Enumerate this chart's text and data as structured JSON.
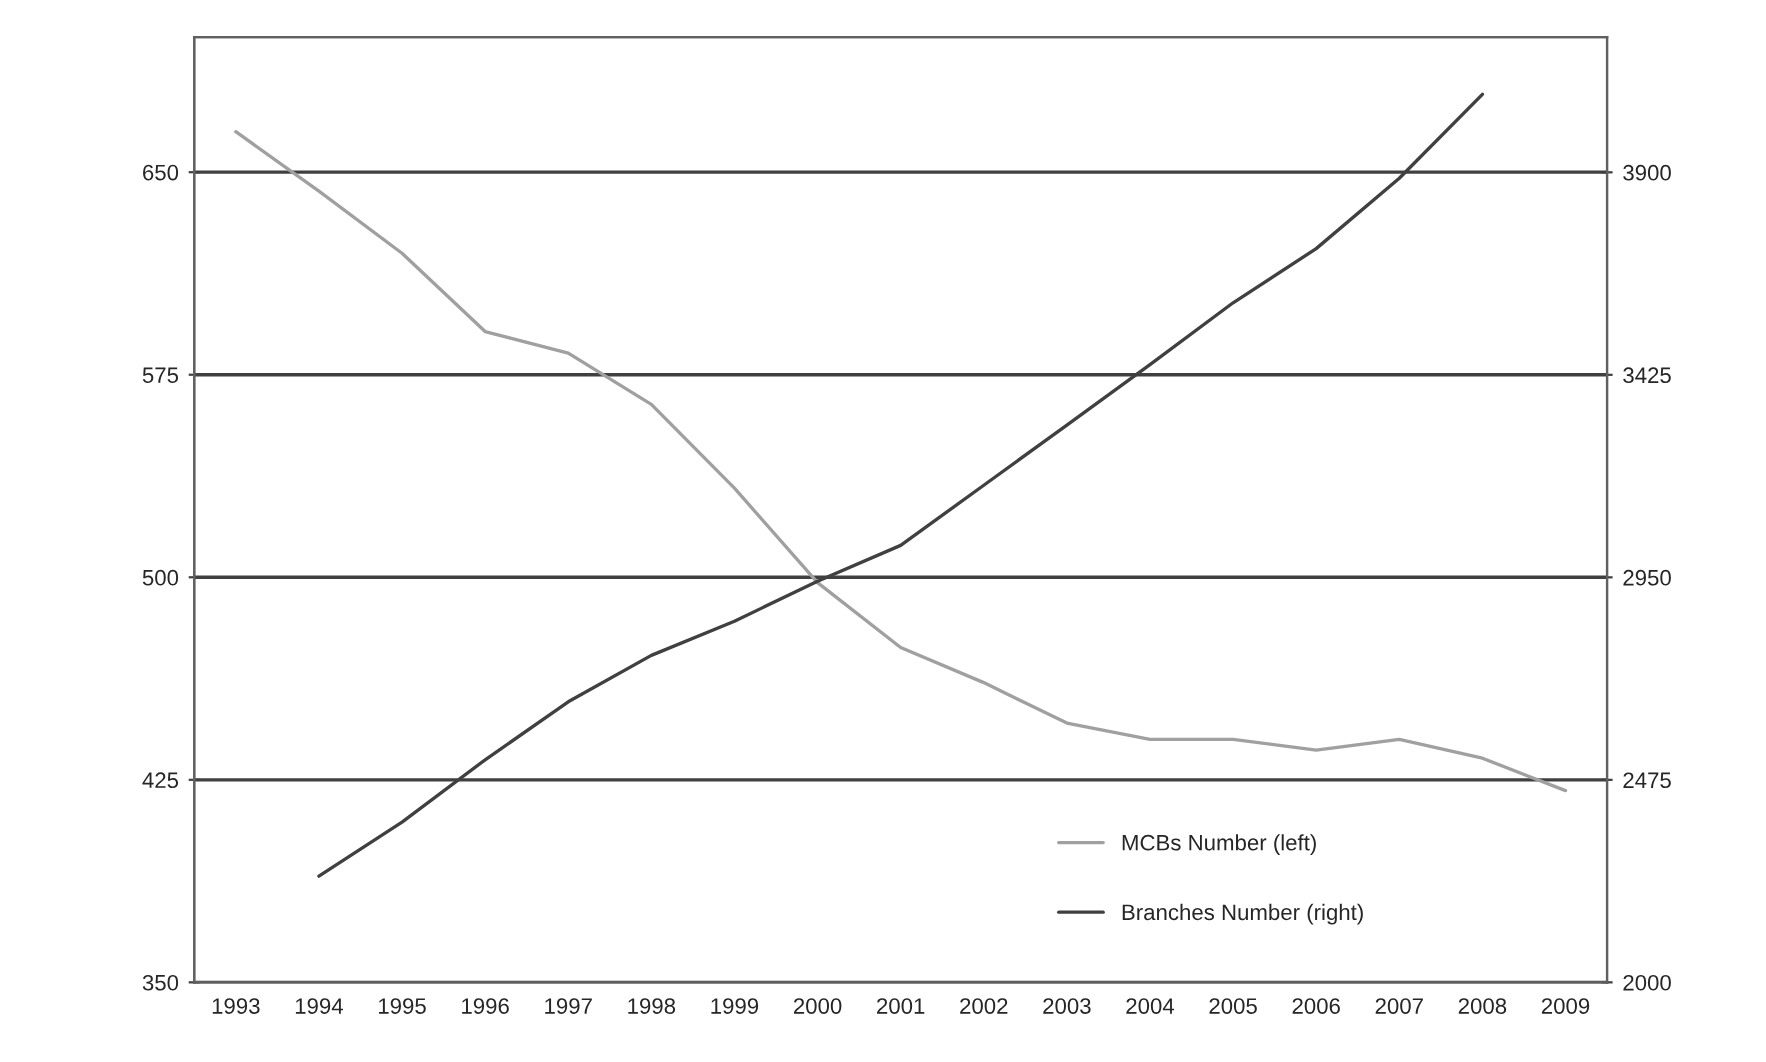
{
  "chart_data": {
    "type": "line",
    "categories": [
      "1993",
      "1994",
      "1995",
      "1996",
      "1997",
      "1998",
      "1999",
      "2000",
      "2001",
      "2002",
      "2003",
      "2004",
      "2005",
      "2006",
      "2007",
      "2008",
      "2009"
    ],
    "series": [
      {
        "name": "MCBs Number (left)",
        "color": "#a0a0a0",
        "values": [
          665,
          643,
          620,
          591,
          583,
          564,
          533,
          498,
          474,
          461,
          446,
          440,
          440,
          436,
          440,
          433,
          421
        ]
      },
      {
        "name": "Branches Number (right)",
        "color": "#404040",
        "axis": "y2",
        "values": [
          null,
          2249,
          2376,
          2522,
          2658,
          2767,
          2847,
          2941,
          3025,
          3166,
          3307,
          3449,
          3594,
          3721,
          3886,
          4083,
          null
        ]
      }
    ],
    "ylim": [
      350,
      700
    ],
    "yticks": [
      350,
      425,
      500,
      575,
      650
    ],
    "y2lim": [
      2000,
      4217
    ],
    "y2ticks": [
      2000,
      2475,
      2950,
      3425,
      3900
    ],
    "grid": "y",
    "legend": "bottom right",
    "marker": "none",
    "line_style": "solid"
  }
}
